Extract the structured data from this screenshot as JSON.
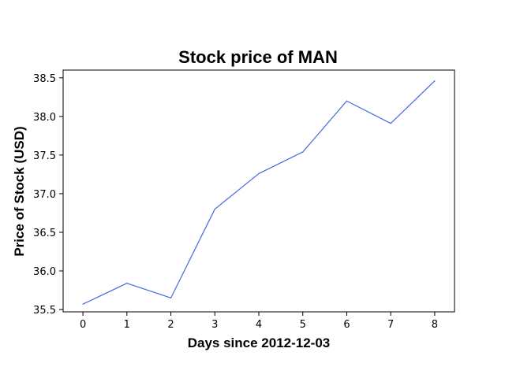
{
  "chart_data": {
    "type": "line",
    "title": "Stock price of MAN",
    "xlabel": "Days since 2012-12-03",
    "ylabel": "Price of Stock (USD)",
    "x": [
      0,
      1,
      2,
      3,
      4,
      5,
      6,
      7,
      8
    ],
    "series": [
      {
        "values": [
          35.57,
          35.84,
          35.65,
          36.8,
          37.26,
          37.54,
          38.2,
          37.91,
          38.46
        ],
        "color": "#4169e1"
      }
    ],
    "xlim": [
      -0.45,
      8.45
    ],
    "ylim": [
      35.47,
      38.6
    ],
    "xticks": [
      0,
      1,
      2,
      3,
      4,
      5,
      6,
      7,
      8
    ],
    "yticks": [
      35.5,
      36.0,
      36.5,
      37.0,
      37.5,
      38.0,
      38.5
    ],
    "ytick_labels": [
      "35.5",
      "36.0",
      "36.5",
      "37.0",
      "37.5",
      "38.0",
      "38.5"
    ],
    "grid": false,
    "legend": "none"
  }
}
